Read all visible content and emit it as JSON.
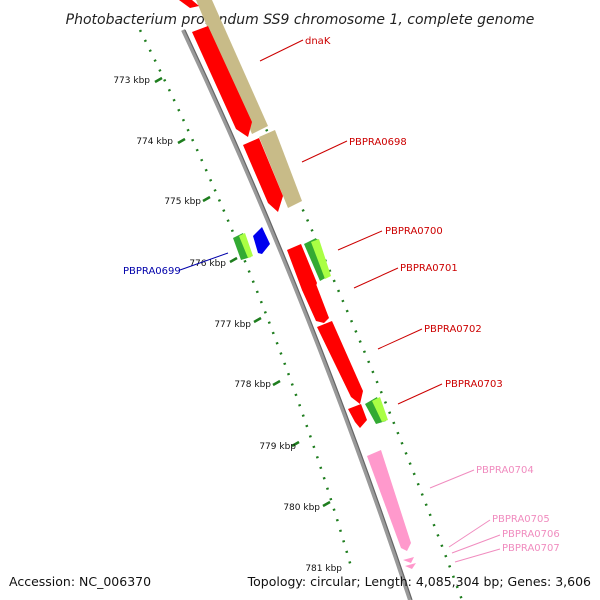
{
  "header": {
    "title": "Photobacterium profundum SS9 chromosome 1, complete genome"
  },
  "footer": {
    "accession": "Accession: NC_006370",
    "summary": "Topology: circular; Length: 4,085,304 bp; Genes: 3,606"
  },
  "ruler": {
    "ticks": [
      "773 kbp",
      "774 kbp",
      "775 kbp",
      "776 kbp",
      "777 kbp",
      "778 kbp",
      "779 kbp",
      "780 kbp",
      "781 kbp"
    ]
  },
  "genes": {
    "dnaK": "dnaK",
    "pbpra0698": "PBPRA0698",
    "pbpra0699": "PBPRA0699",
    "pbpra0700": "PBPRA0700",
    "pbpra0701": "PBPRA0701",
    "pbpra0702": "PBPRA0702",
    "pbpra0703": "PBPRA0703",
    "pbpra0704": "PBPRA0704",
    "pbpra0705": "PBPRA0705",
    "pbpra0706": "PBPRA0706",
    "pbpra0707": "PBPRA0707"
  },
  "colors": {
    "cds": "#ff0000",
    "orf": "#c8bb88",
    "backbone": "#888888",
    "dots": "#1e7d1e",
    "rna": "#ff99cc",
    "blue_feature": "#0000ee",
    "green_feature": "#33aa33",
    "lime_feature": "#aaff44"
  }
}
